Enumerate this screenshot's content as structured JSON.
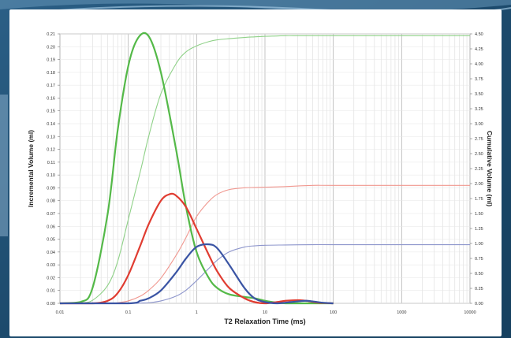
{
  "chart_data": {
    "type": "line",
    "x_scale": "log",
    "xlim": [
      0.01,
      10000
    ],
    "x_ticks": [
      0.01,
      0.1,
      1,
      10,
      100,
      1000,
      10000
    ],
    "x_tick_labels": [
      "0.01",
      "0.1",
      "1",
      "10",
      "100",
      "1000",
      "10000"
    ],
    "xlabel": "T2 Relaxation Time (ms)",
    "ylabel_left": "Incremental Volume (ml)",
    "ylabel_right": "Cumulative Volume (ml)",
    "ylim_left": [
      0,
      0.21
    ],
    "ylim_right": [
      0,
      4.5
    ],
    "y_left_ticks": [
      0.0,
      0.01,
      0.02,
      0.03,
      0.04,
      0.05,
      0.06,
      0.07,
      0.08,
      0.09,
      0.1,
      0.11,
      0.12,
      0.13,
      0.14,
      0.15,
      0.16,
      0.17,
      0.18,
      0.19,
      0.2,
      0.21
    ],
    "y_left_tick_labels": [
      "0.00",
      "0.01",
      "0.02",
      "0.03",
      "0.04",
      "0.05",
      "0.06",
      "0.07",
      "0.08",
      "0.09",
      "0.10",
      "0.11",
      "0.12",
      "0.13",
      "0.14",
      "0.15",
      "0.16",
      "0.17",
      "0.18",
      "0.19",
      "0.20",
      "0.21"
    ],
    "y_right_ticks": [
      0,
      0.25,
      0.5,
      0.75,
      1.0,
      1.25,
      1.5,
      1.75,
      2.0,
      2.25,
      2.5,
      2.75,
      3.0,
      3.25,
      3.5,
      3.75,
      4.0,
      4.25,
      4.5
    ],
    "y_right_tick_labels": [
      "0.00",
      "0.25",
      "0.50",
      "0.75",
      "1.00",
      "1.25",
      "1.50",
      "1.75",
      "2.00",
      "2.25",
      "2.50",
      "2.75",
      "3.00",
      "3.25",
      "3.50",
      "3.75",
      "4.00",
      "4.25",
      "4.50"
    ],
    "grid": true,
    "series": [
      {
        "color": "#54b948",
        "axis": "left",
        "x": [
          0.01,
          0.02,
          0.03,
          0.05,
          0.07,
          0.1,
          0.14,
          0.2,
          0.3,
          0.5,
          0.7,
          1,
          1.5,
          2,
          3,
          5,
          7,
          10,
          15,
          20,
          30,
          50,
          100
        ],
        "y": [
          0,
          0.001,
          0.012,
          0.07,
          0.135,
          0.185,
          0.207,
          0.208,
          0.18,
          0.12,
          0.075,
          0.04,
          0.02,
          0.012,
          0.007,
          0.005,
          0.004,
          0.002,
          0.0005,
          0,
          0,
          0,
          0
        ]
      },
      {
        "color": "#e03c31",
        "axis": "left",
        "x": [
          0.01,
          0.03,
          0.05,
          0.07,
          0.1,
          0.15,
          0.2,
          0.3,
          0.4,
          0.5,
          0.7,
          1,
          1.5,
          2,
          3,
          5,
          7,
          10,
          15,
          20,
          30,
          40,
          60,
          100
        ],
        "y": [
          0,
          0,
          0.002,
          0.008,
          0.022,
          0.045,
          0.062,
          0.08,
          0.085,
          0.084,
          0.075,
          0.058,
          0.038,
          0.025,
          0.012,
          0.004,
          0.001,
          0,
          0.001,
          0.002,
          0.0025,
          0.002,
          0.0005,
          0
        ]
      },
      {
        "color": "#3a54a4",
        "axis": "left",
        "x": [
          0.01,
          0.1,
          0.15,
          0.2,
          0.3,
          0.5,
          0.7,
          1,
          1.5,
          2,
          3,
          5,
          7,
          10,
          15,
          20,
          30,
          40,
          50,
          70,
          100
        ],
        "y": [
          0,
          0,
          0.002,
          0.004,
          0.01,
          0.024,
          0.035,
          0.044,
          0.046,
          0.043,
          0.03,
          0.012,
          0.004,
          0.001,
          0,
          0.0005,
          0.0015,
          0.002,
          0.0015,
          0.0005,
          0
        ]
      },
      {
        "color": "#8fd188",
        "axis": "right",
        "x": [
          0.01,
          0.02,
          0.03,
          0.05,
          0.07,
          0.1,
          0.15,
          0.2,
          0.3,
          0.5,
          0.7,
          1,
          1.5,
          2,
          3,
          5,
          7,
          10,
          15,
          20,
          30,
          50,
          100,
          1000,
          10000
        ],
        "y": [
          0,
          0.01,
          0.05,
          0.3,
          0.7,
          1.4,
          2.2,
          2.8,
          3.5,
          4.0,
          4.2,
          4.3,
          4.37,
          4.4,
          4.42,
          4.44,
          4.45,
          4.46,
          4.465,
          4.47,
          4.47,
          4.47,
          4.47,
          4.47,
          4.47
        ]
      },
      {
        "color": "#f0978f",
        "axis": "right",
        "x": [
          0.01,
          0.05,
          0.07,
          0.1,
          0.15,
          0.2,
          0.3,
          0.5,
          0.7,
          1,
          1.5,
          2,
          3,
          5,
          7,
          10,
          15,
          20,
          30,
          50,
          100,
          1000,
          10000
        ],
        "y": [
          0,
          0,
          0.01,
          0.04,
          0.12,
          0.22,
          0.42,
          0.8,
          1.1,
          1.45,
          1.7,
          1.82,
          1.9,
          1.93,
          1.935,
          1.94,
          1.945,
          1.95,
          1.96,
          1.97,
          1.97,
          1.97,
          1.97
        ]
      },
      {
        "color": "#8e96cc",
        "axis": "right",
        "x": [
          0.01,
          0.1,
          0.15,
          0.2,
          0.3,
          0.5,
          0.7,
          1,
          1.5,
          2,
          3,
          5,
          7,
          10,
          20,
          50,
          100,
          1000,
          10000
        ],
        "y": [
          0,
          0,
          0.005,
          0.01,
          0.04,
          0.12,
          0.22,
          0.38,
          0.58,
          0.72,
          0.86,
          0.94,
          0.96,
          0.97,
          0.975,
          0.98,
          0.98,
          0.98,
          0.98
        ]
      }
    ]
  }
}
